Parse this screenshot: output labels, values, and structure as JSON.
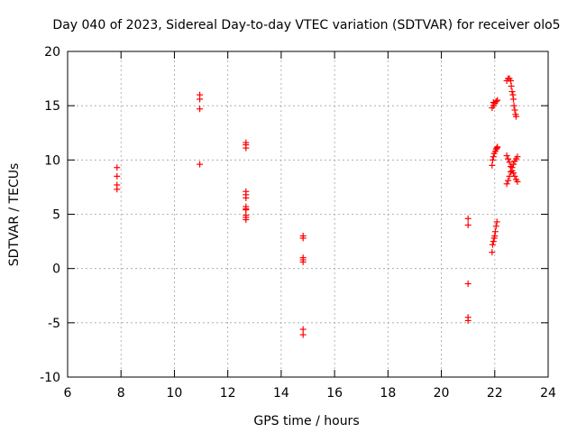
{
  "chart_data": {
    "type": "scatter",
    "title": "Day 040 of 2023, Sidereal Day-to-day VTEC variation (SDTVAR) for receiver olo5",
    "xlabel": "GPS time / hours",
    "ylabel": "SDTVAR / TECUs",
    "xlim": [
      6,
      24
    ],
    "ylim": [
      -10,
      20
    ],
    "xticks": [
      6,
      8,
      10,
      12,
      14,
      16,
      18,
      20,
      22,
      24
    ],
    "yticks": [
      -10,
      -5,
      0,
      5,
      10,
      15,
      20
    ],
    "xtick_labels": [
      "6",
      "8",
      "10",
      "12",
      "14",
      "16",
      "18",
      "20",
      "22",
      "24"
    ],
    "ytick_labels": [
      "-10",
      "-5",
      "0",
      "5",
      "10",
      "15",
      "20"
    ],
    "grid": true,
    "marker": "+",
    "series": [
      {
        "name": "SDTVAR",
        "color": "#ff0000",
        "x": [
          7.85,
          7.85,
          7.85,
          7.85,
          10.95,
          10.95,
          10.95,
          10.95,
          12.68,
          12.68,
          12.68,
          12.68,
          12.68,
          12.68,
          12.68,
          12.68,
          12.68,
          12.68,
          12.68,
          12.68,
          14.82,
          14.82,
          14.82,
          14.82,
          14.82,
          14.82,
          14.82,
          21.0,
          21.0,
          21.0,
          21.0,
          21.0,
          21.9,
          21.95,
          22.0,
          22.05,
          22.1,
          21.95,
          21.9,
          21.92,
          21.95,
          21.98,
          22.02,
          22.05,
          22.08,
          22.1,
          21.9,
          21.92,
          21.95,
          21.98,
          22.0,
          22.02,
          22.05,
          22.08,
          22.45,
          22.5,
          22.55,
          22.6,
          22.62,
          22.65,
          22.68,
          22.7,
          22.72,
          22.75,
          22.78,
          22.8,
          22.45,
          22.5,
          22.55,
          22.6,
          22.65,
          22.7,
          22.75,
          22.8,
          22.85,
          22.45,
          22.5,
          22.55,
          22.6,
          22.65,
          22.7,
          22.75,
          22.8,
          22.85
        ],
        "y": [
          9.3,
          8.5,
          7.7,
          7.3,
          16.0,
          15.6,
          14.7,
          9.6,
          11.6,
          11.4,
          11.1,
          7.1,
          6.8,
          6.5,
          5.7,
          5.5,
          5.4,
          4.9,
          4.7,
          4.5,
          3.0,
          2.8,
          1.0,
          0.8,
          0.6,
          -5.6,
          -6.1,
          4.6,
          4.0,
          -1.4,
          -4.5,
          -4.8,
          14.8,
          15.0,
          15.2,
          15.4,
          15.5,
          15.3,
          9.5,
          10.0,
          10.3,
          10.6,
          10.8,
          11.0,
          11.1,
          11.2,
          1.5,
          2.2,
          2.5,
          2.8,
          3.0,
          3.4,
          3.9,
          4.3,
          17.3,
          17.5,
          17.5,
          17.3,
          16.8,
          16.3,
          16.0,
          15.6,
          15.0,
          14.6,
          14.2,
          14.0,
          10.4,
          10.1,
          9.8,
          9.4,
          9.0,
          8.8,
          8.5,
          8.2,
          8.0,
          7.8,
          8.1,
          8.5,
          8.9,
          9.3,
          9.6,
          9.9,
          10.1,
          10.3
        ]
      }
    ]
  }
}
